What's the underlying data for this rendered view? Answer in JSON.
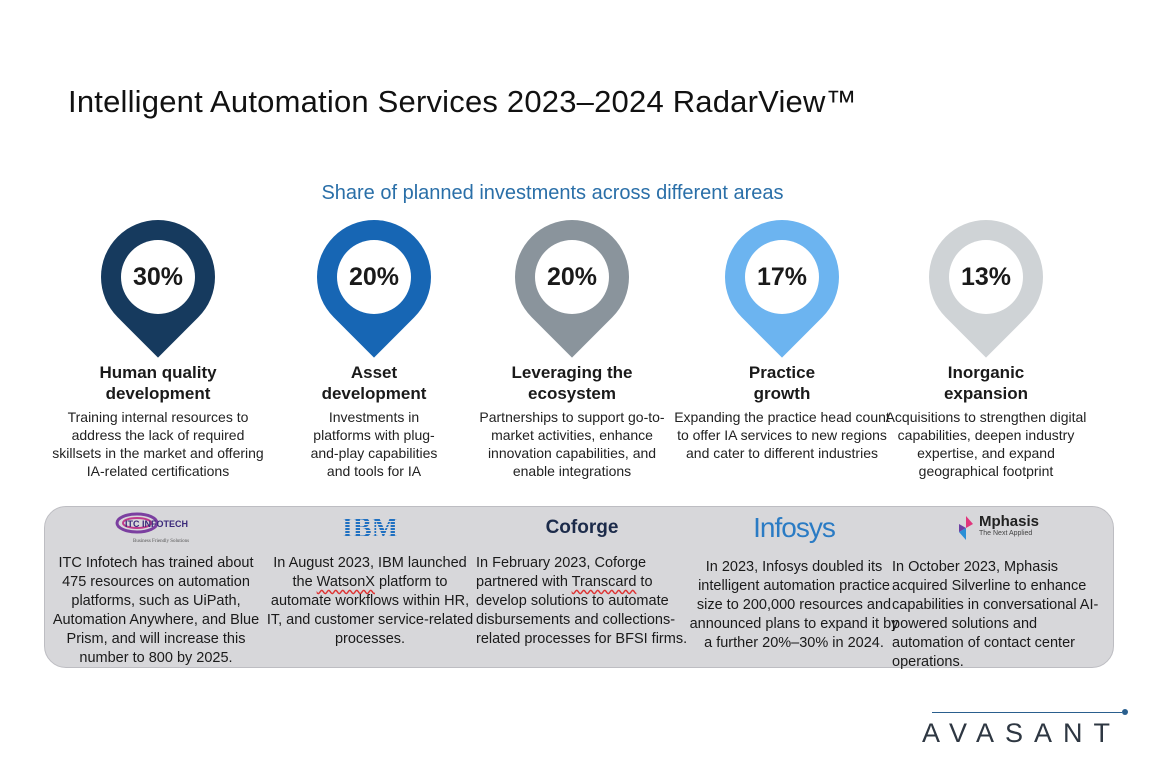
{
  "title": "Intelligent Automation Services 2023–2024 RadarView™",
  "subtitle": "Share of planned investments across different areas",
  "areas": [
    {
      "value": "30%",
      "title": "Human quality development",
      "desc": "Training internal resources to address the lack of required skillsets in the market and offering IA-related certifications",
      "color": "#163a5e"
    },
    {
      "value": "20%",
      "title": "Asset development",
      "desc": "Investments in platforms with plug-and-play capabilities and tools for IA",
      "color": "#1766b4"
    },
    {
      "value": "20%",
      "title": "Leveraging the ecosystem",
      "desc": "Partnerships to support go-to-market activities, enhance innovation capabilities, and enable integrations",
      "color": "#8a949c"
    },
    {
      "value": "17%",
      "title": "Practice growth",
      "desc": "Expanding the practice head count to offer IA services to new regions and cater to different industries",
      "color": "#6cb4f0"
    },
    {
      "value": "13%",
      "title": "Inorganic expansion",
      "desc": "Acquisitions to strengthen digital capabilities, deepen industry expertise, and expand geographical footprint",
      "color": "#cfd3d6"
    }
  ],
  "cases": [
    {
      "logo": "ITC INFOTECH",
      "logo_tag": "Business Friendly Solutions",
      "text": "ITC Infotech has trained about 475 resources on automation platforms, such as UiPath, Automation Anywhere, and Blue Prism, and will increase this number to 800 by 2025."
    },
    {
      "logo": "IBM",
      "text_a": "In August 2023, IBM launched the ",
      "text_b": "WatsonX",
      "text_c": " platform to automate workflows within HR, IT, and customer service-related processes."
    },
    {
      "logo": "Coforge",
      "text_a": "In February 2023, Coforge partnered with ",
      "text_b": "Transcard",
      "text_c": " to develop solutions to automate disbursements and collections-related processes for BFSI firms."
    },
    {
      "logo": "Infosys",
      "text": "In 2023, Infosys doubled its intelligent automation practice size to 200,000 resources and announced plans to expand it by a further 20%–30% in 2024."
    },
    {
      "logo": "Mphasis",
      "logo_tag": "The Next Applied",
      "text": "In October 2023, Mphasis acquired Silverline to enhance capabilities in conversational AI-powered solutions and automation of contact center operations."
    }
  ],
  "footer_brand": "AVASANT"
}
